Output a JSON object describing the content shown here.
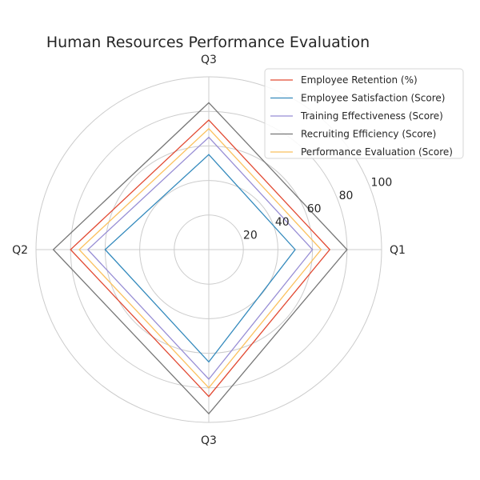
{
  "chart_data": {
    "type": "radar",
    "title": "Human Resources Performance Evaluation",
    "categories": [
      "Q1",
      "Q3",
      "Q2",
      "Q3"
    ],
    "rlim": [
      0,
      100
    ],
    "rticks": [
      20,
      40,
      60,
      80,
      100
    ],
    "grid": true,
    "legend_position": "top-right",
    "series": [
      {
        "name": "Employee Retention (%)",
        "color": "#e24a33",
        "values": [
          70,
          75,
          80,
          85
        ]
      },
      {
        "name": "Employee Satisfaction (Score)",
        "color": "#348abd",
        "values": [
          50,
          55,
          60,
          65
        ]
      },
      {
        "name": "Training Effectiveness (Score)",
        "color": "#988ed5",
        "values": [
          60,
          65,
          70,
          75
        ]
      },
      {
        "name": "Recruiting Efficiency (Score)",
        "color": "#777777",
        "values": [
          80,
          85,
          90,
          95
        ]
      },
      {
        "name": "Performance Evaluation (Score)",
        "color": "#fbc15e",
        "values": [
          65,
          70,
          75,
          80
        ]
      }
    ]
  }
}
